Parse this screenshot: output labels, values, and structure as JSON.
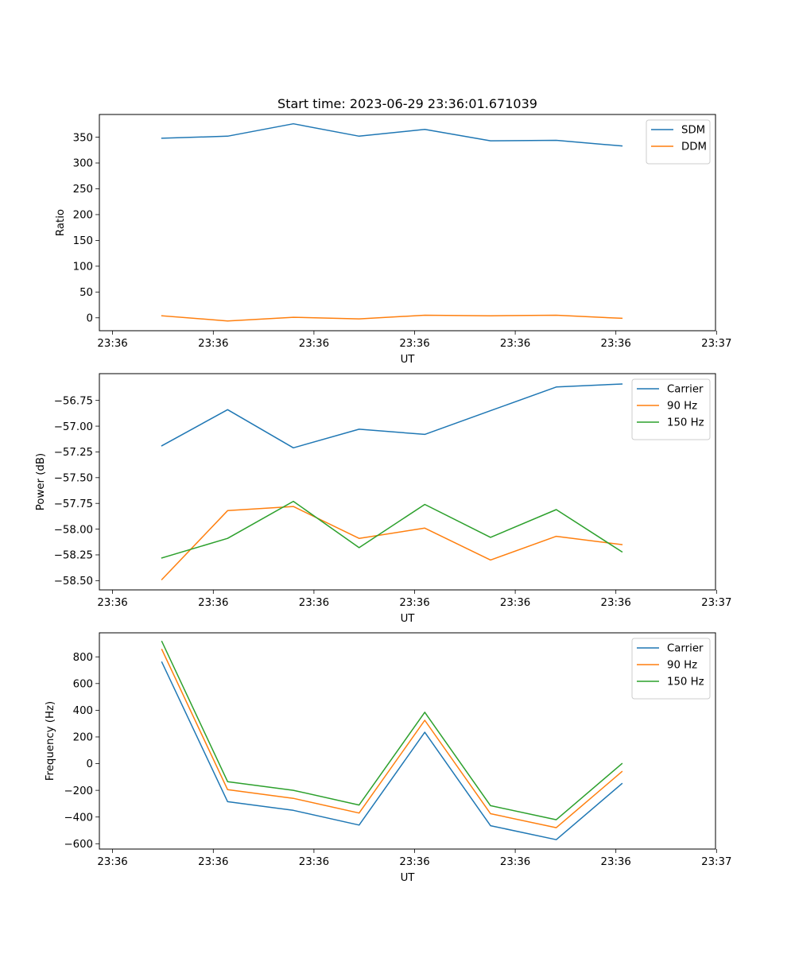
{
  "chart_data": [
    {
      "type": "line",
      "title": "Start time: 2023-06-29 23:36:01.671039",
      "xlabel": "UT",
      "ylabel": "Ratio",
      "x_ticks": [
        "23:36",
        "23:36",
        "23:36",
        "23:36",
        "23:36",
        "23:36",
        "23:37"
      ],
      "ylim": [
        -25,
        394
      ],
      "y_ticks": [
        "0",
        "50",
        "100",
        "150",
        "200",
        "250",
        "300",
        "350"
      ],
      "legend_position": "upper-right",
      "grid": false,
      "series": [
        {
          "name": "SDM",
          "color": "#1f77b4",
          "values": [
            348,
            352,
            376,
            352,
            365,
            343,
            344,
            333
          ]
        },
        {
          "name": "DDM",
          "color": "#ff7f0e",
          "values": [
            4,
            -6,
            1,
            -2,
            5,
            4,
            5,
            -1
          ]
        }
      ]
    },
    {
      "type": "line",
      "title": "",
      "xlabel": "UT",
      "ylabel": "Power (dB)",
      "x_ticks": [
        "23:36",
        "23:36",
        "23:36",
        "23:36",
        "23:36",
        "23:36",
        "23:37"
      ],
      "ylim": [
        -58.59,
        -56.49
      ],
      "y_ticks": [
        "−58.50",
        "−58.25",
        "−58.00",
        "−57.75",
        "−57.50",
        "−57.25",
        "−57.00",
        "−56.75"
      ],
      "legend_position": "upper-right",
      "grid": false,
      "series": [
        {
          "name": "Carrier",
          "color": "#1f77b4",
          "values": [
            -57.19,
            -56.84,
            -57.21,
            -57.03,
            -57.08,
            -56.85,
            -56.62,
            -56.59
          ]
        },
        {
          "name": "90 Hz",
          "color": "#ff7f0e",
          "values": [
            -58.49,
            -57.82,
            -57.78,
            -58.09,
            -57.99,
            -58.3,
            -58.07,
            -58.15
          ]
        },
        {
          "name": "150 Hz",
          "color": "#2ca02c",
          "values": [
            -58.28,
            -58.09,
            -57.73,
            -58.18,
            -57.76,
            -58.08,
            -57.81,
            -58.22
          ]
        }
      ]
    },
    {
      "type": "line",
      "title": "",
      "xlabel": "UT",
      "ylabel": "Frequency (Hz)",
      "x_ticks": [
        "23:36",
        "23:36",
        "23:36",
        "23:36",
        "23:36",
        "23:36",
        "23:37"
      ],
      "ylim": [
        -640,
        980
      ],
      "y_ticks": [
        "−600",
        "−400",
        "−200",
        "0",
        "200",
        "400",
        "600",
        "800"
      ],
      "legend_position": "upper-right",
      "grid": false,
      "series": [
        {
          "name": "Carrier",
          "color": "#1f77b4",
          "values": [
            760,
            -285,
            -350,
            -460,
            235,
            -465,
            -570,
            -150
          ]
        },
        {
          "name": "90 Hz",
          "color": "#ff7f0e",
          "values": [
            855,
            -195,
            -260,
            -370,
            325,
            -375,
            -480,
            -60
          ]
        },
        {
          "name": "150 Hz",
          "color": "#2ca02c",
          "values": [
            915,
            -135,
            -200,
            -310,
            385,
            -315,
            -420,
            0
          ]
        }
      ]
    }
  ]
}
